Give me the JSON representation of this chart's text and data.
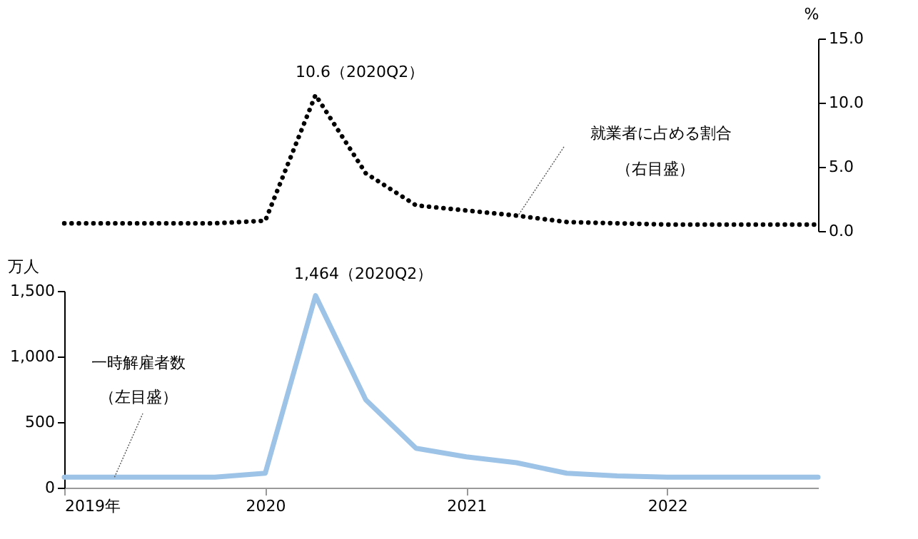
{
  "chart_data": [
    {
      "type": "line",
      "ylabel": "%",
      "ylim": [
        0,
        15
      ],
      "yticks": [
        {
          "value": 0,
          "label": "0.0"
        },
        {
          "value": 5,
          "label": "5.0"
        },
        {
          "value": 10,
          "label": "10.0"
        },
        {
          "value": 15,
          "label": "15.0"
        }
      ],
      "tick_labels": "y",
      "categories": [
        null,
        null,
        null,
        null,
        null,
        null,
        null,
        null,
        null,
        null,
        null,
        null,
        null,
        null,
        null,
        null
      ],
      "series": [
        {
          "name": "就業者に占める割合",
          "color": "#000000",
          "line_style": "dotted",
          "values": [
            0.6,
            0.6,
            0.6,
            0.6,
            0.8,
            10.6,
            4.5,
            2.0,
            1.6,
            1.2,
            0.7,
            0.6,
            0.5,
            0.5,
            0.5,
            0.5
          ]
        }
      ],
      "annotations": [
        "10.6（2020Q2）",
        "（右目盛）"
      ]
    },
    {
      "type": "line",
      "ylabel": "万人",
      "xlim": [
        2019,
        2022.75
      ],
      "ylim": [
        0,
        1500
      ],
      "xticks": [
        {
          "value": 2019,
          "label": "2019年"
        },
        2020,
        2021,
        2022
      ],
      "yticks": [
        0,
        500,
        {
          "value": 1000,
          "label": "1,000"
        },
        {
          "value": 1500,
          "label": "1,500"
        }
      ],
      "x": [
        2019,
        2019.25,
        2019.5,
        2019.75,
        2020,
        2020.25,
        2020.5,
        2020.75,
        2021,
        2021.25,
        2021.5,
        2021.75,
        2022,
        2022.25,
        2022.5,
        2022.75
      ],
      "series": [
        {
          "name": "一時解雇者数",
          "color": "#9dc3e6",
          "line_style": "solid",
          "values": [
            80,
            80,
            80,
            80,
            110,
            1464,
            670,
            300,
            235,
            190,
            110,
            90,
            80,
            80,
            80,
            80
          ]
        }
      ],
      "annotations": [
        {
          "text": "1,464（2020Q2）",
          "x": 2020.25,
          "y": 1464
        },
        {
          "text": "（左目盛）",
          "x": 2019.25,
          "y": 80
        }
      ]
    }
  ]
}
